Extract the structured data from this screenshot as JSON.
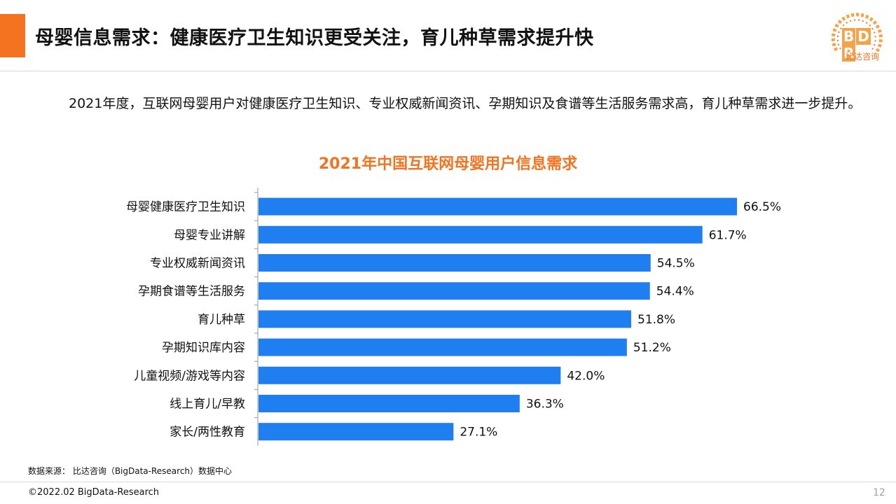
{
  "header": {
    "title": "母婴信息需求：健康医疗卫生知识更受关注，育儿种草需求提升快",
    "accent_color": "#f47321"
  },
  "logo": {
    "letters": [
      "B",
      "D",
      "R"
    ],
    "name_cn": "比达咨询"
  },
  "intro_text": "2021年度，互联网母婴用户对健康医疗卫生知识、专业权威新闻资讯、孕期知识及食谱等生活服务需求高，育儿种草需求进一步提升。",
  "chart_data": {
    "type": "bar",
    "orientation": "horizontal",
    "title": "2021年中国互联网母婴用户信息需求",
    "categories": [
      "母婴健康医疗卫生知识",
      "母婴专业讲解",
      "专业权威新闻资讯",
      "孕期食谱等生活服务",
      "育儿种草",
      "孕期知识库内容",
      "儿童视频/游戏等内容",
      "线上育儿/早教",
      "家长/两性教育"
    ],
    "values": [
      66.5,
      61.7,
      54.5,
      54.4,
      51.8,
      51.2,
      42.0,
      36.3,
      27.1
    ],
    "value_labels": [
      "66.5%",
      "61.7%",
      "54.5%",
      "54.4%",
      "51.8%",
      "51.2%",
      "42.0%",
      "36.3%",
      "27.1%"
    ],
    "unit": "%",
    "bar_color": "#1f7ff0",
    "xlim": [
      0,
      100
    ],
    "grid": false,
    "legend": "none"
  },
  "source_text": "数据来源： 比达咨询（BigData-Research）数据中心",
  "footer": {
    "copyright": "©2022.02 BigData-Research",
    "page_number": "12"
  }
}
